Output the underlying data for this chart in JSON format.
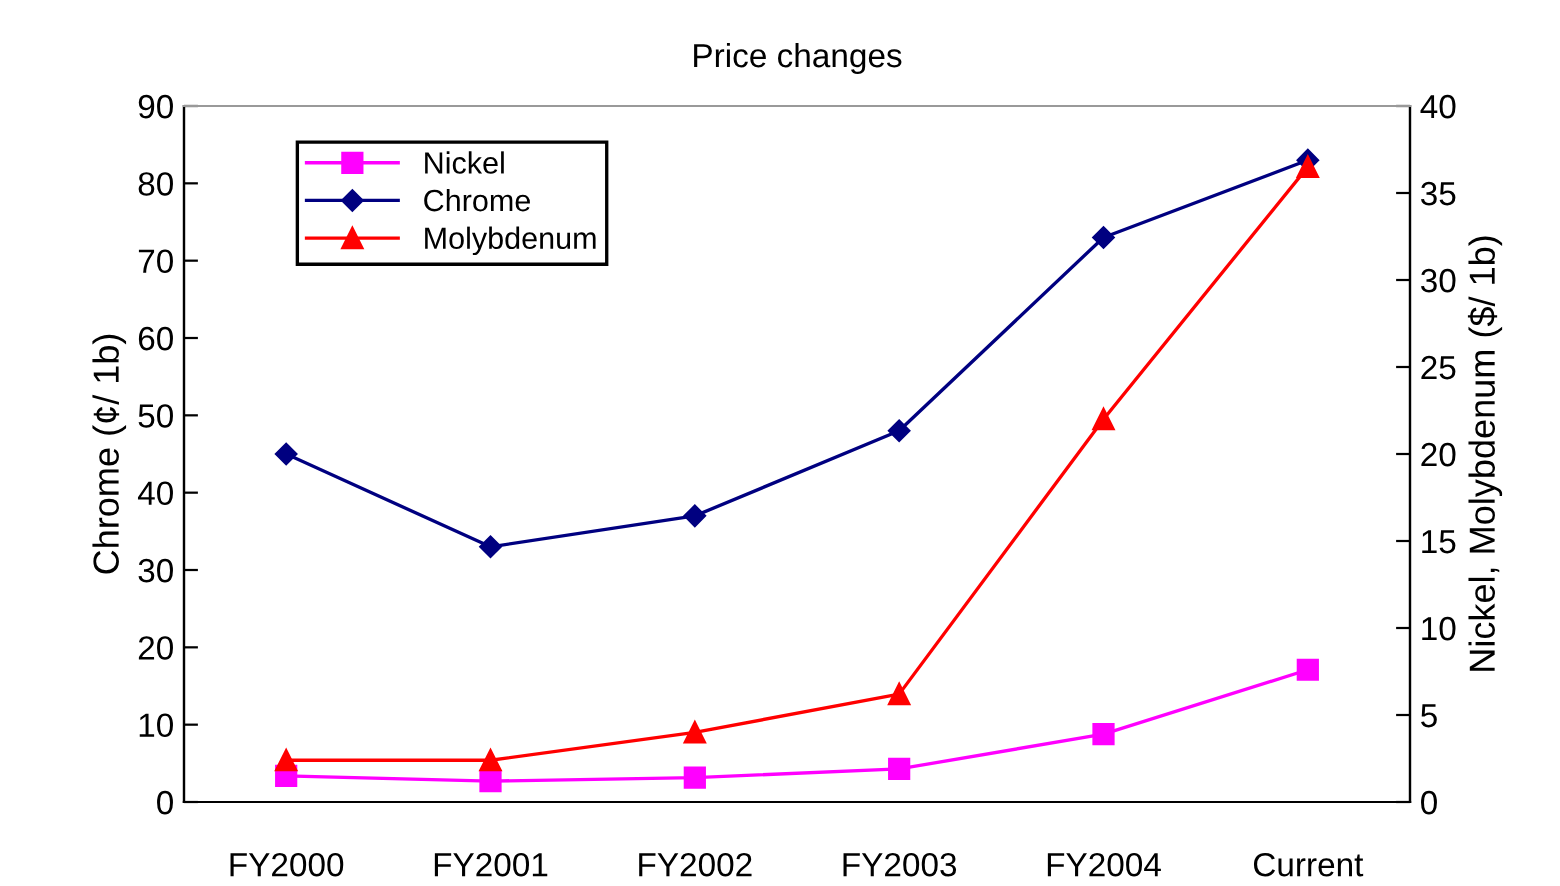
{
  "chart_data": {
    "type": "line",
    "title": "Price changes",
    "ylabel": "Chrome (¢/ 1b)",
    "y2label": "Nickel, Molybdenum ($/ 1b)",
    "categories": [
      "FY2000",
      "FY2001",
      "FY2002",
      "FY2003",
      "FY2004",
      "Current"
    ],
    "series": [
      {
        "name": "Nickel",
        "color": "#ff00ff",
        "marker": "square",
        "axis": "y2",
        "values": [
          1.5,
          1.2,
          1.4,
          1.9,
          3.9,
          7.6
        ]
      },
      {
        "name": "Chrome",
        "color": "#000080",
        "marker": "diamond",
        "values": [
          45,
          33,
          37,
          48,
          73,
          83
        ]
      },
      {
        "name": "Molybdenum",
        "color": "#ff0000",
        "marker": "triangle",
        "axis": "y2",
        "values": [
          2.4,
          2.4,
          4.0,
          6.2,
          22.0,
          36.5
        ]
      }
    ],
    "ylim": [
      0,
      90
    ],
    "yticks": [
      0,
      10,
      20,
      30,
      40,
      50,
      60,
      70,
      80,
      90
    ],
    "y2lim": [
      0,
      40
    ],
    "y2ticks": [
      0,
      5,
      10,
      15,
      20,
      25,
      30,
      35,
      40
    ],
    "grid": false,
    "legend": "top left",
    "line_style": "solid"
  }
}
